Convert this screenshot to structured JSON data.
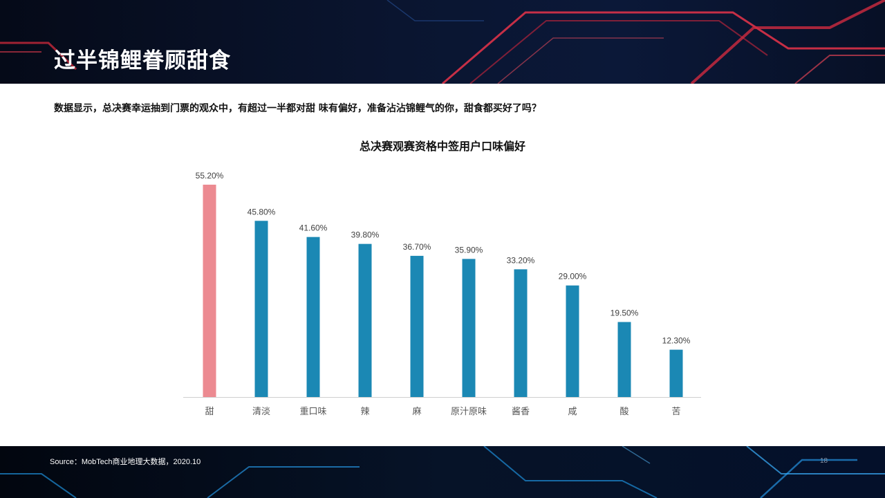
{
  "header": {
    "title": "过半锦鲤眷顾甜食"
  },
  "subtitle": "数据显示，总决赛幸运抽到门票的观众中，有超过一半都对甜 味有偏好，准备沾沾锦鲤气的你，甜食都买好了吗？",
  "footer": {
    "source": "Source：MobTech商业地理大数据，2020.10",
    "page_number": "18"
  },
  "colors": {
    "highlight_bar": "#ec8a91",
    "bar": "#1b88b4",
    "header_bg": "#0a1530"
  },
  "chart_data": {
    "type": "bar",
    "title": "总决赛观赛资格中签用户口味偏好",
    "categories": [
      "甜",
      "清淡",
      "重口味",
      "辣",
      "麻",
      "原汁原味",
      "酱香",
      "咸",
      "酸",
      "苦"
    ],
    "values": [
      55.2,
      45.8,
      41.6,
      39.8,
      36.7,
      35.9,
      33.2,
      29.0,
      19.5,
      12.3
    ],
    "value_labels": [
      "55.20%",
      "45.80%",
      "41.60%",
      "39.80%",
      "36.70%",
      "35.90%",
      "33.20%",
      "29.00%",
      "19.50%",
      "12.30%"
    ],
    "highlight_index": 0,
    "xlabel": "",
    "ylabel": "",
    "ylim": [
      0,
      55.2
    ],
    "grid": false,
    "legend": "none"
  }
}
